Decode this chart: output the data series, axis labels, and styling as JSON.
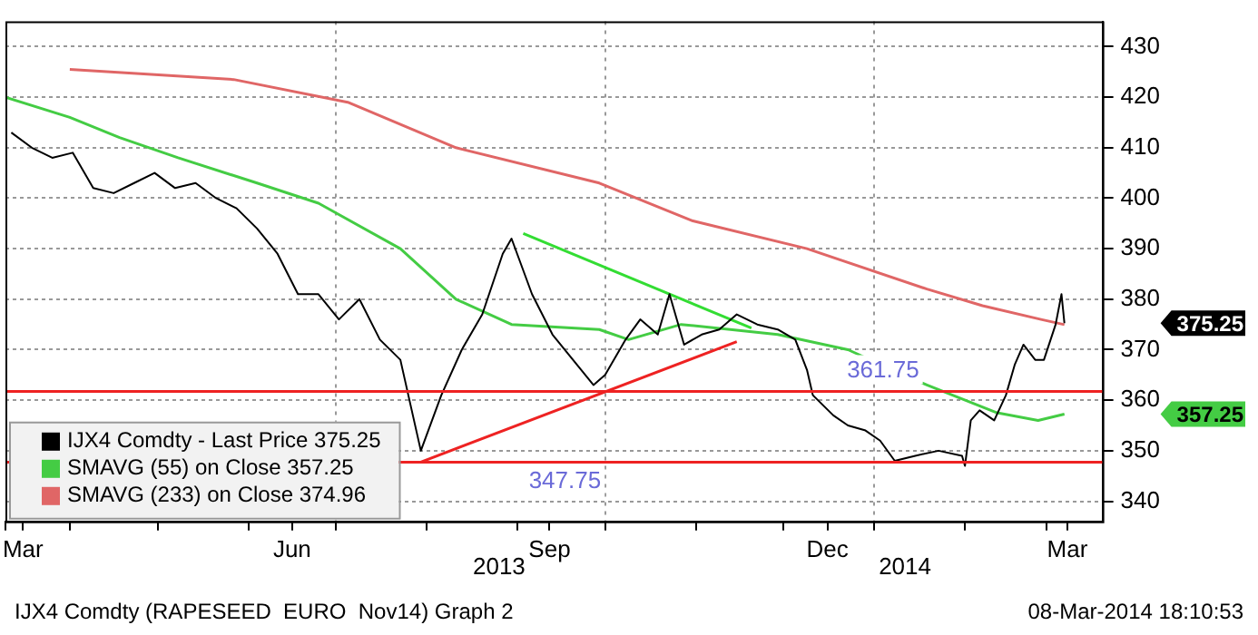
{
  "chart_data": {
    "type": "line",
    "annotations": [
      "2013",
      "2014",
      "IJX4 Comdty (RAPESEED  EURO  Nov14) Graph 2",
      "08-Mar-2014 18:10:53",
      "375.25",
      "357.25"
    ],
    "xlim": [
      "2013-03-10",
      "2014-03-20"
    ],
    "xticks": [
      {
        "value": "2013-03-10",
        "label": null
      },
      {
        "value": "2013-03-16",
        "label": "Mar"
      },
      {
        "value": "2013-04-01",
        "label": null
      },
      {
        "value": "2013-05-01",
        "label": null
      },
      {
        "value": "2013-06-01",
        "label": null
      },
      {
        "value": "2013-06-16",
        "label": "Jun"
      },
      {
        "value": "2013-07-01",
        "label": null
      },
      {
        "value": "2013-08-01",
        "label": null
      },
      {
        "value": "2013-09-01",
        "label": null
      },
      {
        "value": "2013-09-12",
        "label": "Sep"
      },
      {
        "value": "2013-10-01",
        "label": null
      },
      {
        "value": "2013-11-01",
        "label": null
      },
      {
        "value": "2013-12-01",
        "label": null
      },
      {
        "value": "2013-12-16",
        "label": "Dec"
      },
      {
        "value": "2014-01-01",
        "label": null
      },
      {
        "value": "2014-02-01",
        "label": null
      },
      {
        "value": "2014-03-01",
        "label": null
      },
      {
        "value": "2014-03-08",
        "label": "Mar"
      }
    ],
    "ylim": [
      336,
      435
    ],
    "yticks": [
      340,
      350,
      360,
      370,
      380,
      390,
      400,
      410,
      420,
      430
    ],
    "grid": true,
    "legend": "bottom left",
    "series": [
      {
        "name": "IJX4 Comdty - Last Price 375.25",
        "color": "#000000",
        "x": [
          "2013-03-12",
          "2013-03-19",
          "2013-03-26",
          "2013-04-02",
          "2013-04-09",
          "2013-04-16",
          "2013-04-23",
          "2013-04-30",
          "2013-05-07",
          "2013-05-14",
          "2013-05-21",
          "2013-05-28",
          "2013-06-04",
          "2013-06-11",
          "2013-06-18",
          "2013-06-25",
          "2013-07-02",
          "2013-07-09",
          "2013-07-16",
          "2013-07-23",
          "2013-07-30",
          "2013-08-06",
          "2013-08-13",
          "2013-08-20",
          "2013-08-27",
          "2013-08-30",
          "2013-09-06",
          "2013-09-13",
          "2013-09-20",
          "2013-09-27",
          "2013-10-01",
          "2013-10-08",
          "2013-10-13",
          "2013-10-19",
          "2013-10-23",
          "2013-10-28",
          "2013-11-03",
          "2013-11-09",
          "2013-11-15",
          "2013-11-22",
          "2013-11-29",
          "2013-12-05",
          "2013-12-09",
          "2013-12-11",
          "2013-12-18",
          "2013-12-23",
          "2013-12-29",
          "2014-01-03",
          "2014-01-08",
          "2014-01-15",
          "2014-01-23",
          "2014-01-31",
          "2014-02-01",
          "2014-02-03",
          "2014-02-06",
          "2014-02-11",
          "2014-02-15",
          "2014-02-18",
          "2014-02-21",
          "2014-02-25",
          "2014-02-28",
          "2014-03-04",
          "2014-03-06",
          "2014-03-07"
        ],
        "values": [
          413,
          410,
          408,
          409,
          402,
          401,
          403,
          405,
          402,
          403,
          400,
          398,
          394,
          389,
          381,
          381,
          376,
          380,
          372,
          368,
          350,
          361,
          370,
          377,
          389,
          392,
          381,
          373,
          368,
          363,
          365,
          372,
          376,
          373,
          381,
          371,
          373,
          374,
          377,
          375,
          374,
          372,
          366,
          361,
          357,
          355,
          354,
          352,
          348,
          349,
          350,
          349,
          347,
          356,
          358,
          356,
          361,
          367,
          371,
          368,
          368,
          375,
          381,
          375.25
        ]
      },
      {
        "name": "SMAVG (55) on Close 357.25",
        "color": "#44cc44",
        "x": [
          "2013-03-10",
          "2013-04-01",
          "2013-04-18",
          "2013-05-08",
          "2013-06-04",
          "2013-06-25",
          "2013-07-23",
          "2013-08-11",
          "2013-08-30",
          "2013-09-29",
          "2013-10-09",
          "2013-10-27",
          "2013-11-29",
          "2013-12-23",
          "2014-01-19",
          "2014-02-12",
          "2014-02-26",
          "2014-03-07"
        ],
        "values": [
          420,
          416,
          412,
          408,
          403,
          399,
          390,
          380,
          375,
          374,
          372,
          375,
          373,
          370,
          363,
          357.5,
          356,
          357.25
        ]
      },
      {
        "name": "SMAVG (233) on Close 374.96",
        "color": "#e06666",
        "x": [
          "2013-04-01",
          "2013-05-27",
          "2013-07-05",
          "2013-08-11",
          "2013-09-29",
          "2013-10-31",
          "2013-12-09",
          "2014-01-19",
          "2014-02-07",
          "2014-02-27",
          "2014-03-07"
        ],
        "values": [
          425.5,
          423.5,
          419,
          410,
          403,
          395.5,
          390,
          382,
          378.7,
          376,
          374.96
        ]
      },
      {
        "color": "#33dd33",
        "x": [
          "2013-09-03",
          "2013-11-20"
        ],
        "values": [
          393,
          374.3
        ]
      },
      {
        "color": "#ee2222",
        "x": [
          "2013-07-30",
          "2013-11-15"
        ],
        "values": [
          347.75,
          371.6
        ]
      }
    ],
    "ref_lines": [
      {
        "axis": "y",
        "value": 361.75,
        "label": "361.75",
        "color": "#ee2222"
      },
      {
        "axis": "y",
        "value": 347.75,
        "label": "347.75",
        "color": "#ee2222"
      }
    ]
  }
}
